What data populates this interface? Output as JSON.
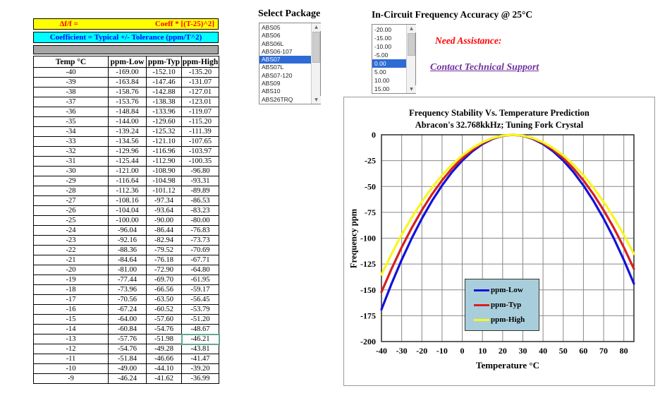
{
  "formula_banner": {
    "line1_left": "Δf/f =",
    "line1_right": "Coeff * [(T-25)^2]",
    "line2": "Coefficient =  Typical +/-  Tolerance (ppm/T^2)",
    "colors": {
      "line1_bg": "#ffff00",
      "line1_text": "#ff0000",
      "line2_bg": "#00ffff",
      "line2_text": "#0000ff",
      "spacer_bg": "#a6a6a6"
    }
  },
  "table": {
    "headers": [
      "Temp °C",
      "ppm-Low",
      "ppm-Typ",
      "ppm-High"
    ],
    "selected_cell": {
      "row_index": 27,
      "col_index": 3
    },
    "rows": [
      [
        "-40",
        "-169.00",
        "-152.10",
        "-135.20"
      ],
      [
        "-39",
        "-163.84",
        "-147.46",
        "-131.07"
      ],
      [
        "-38",
        "-158.76",
        "-142.88",
        "-127.01"
      ],
      [
        "-37",
        "-153.76",
        "-138.38",
        "-123.01"
      ],
      [
        "-36",
        "-148.84",
        "-133.96",
        "-119.07"
      ],
      [
        "-35",
        "-144.00",
        "-129.60",
        "-115.20"
      ],
      [
        "-34",
        "-139.24",
        "-125.32",
        "-111.39"
      ],
      [
        "-33",
        "-134.56",
        "-121.10",
        "-107.65"
      ],
      [
        "-32",
        "-129.96",
        "-116.96",
        "-103.97"
      ],
      [
        "-31",
        "-125.44",
        "-112.90",
        "-100.35"
      ],
      [
        "-30",
        "-121.00",
        "-108.90",
        "-96.80"
      ],
      [
        "-29",
        "-116.64",
        "-104.98",
        "-93.31"
      ],
      [
        "-28",
        "-112.36",
        "-101.12",
        "-89.89"
      ],
      [
        "-27",
        "-108.16",
        "-97.34",
        "-86.53"
      ],
      [
        "-26",
        "-104.04",
        "-93.64",
        "-83.23"
      ],
      [
        "-25",
        "-100.00",
        "-90.00",
        "-80.00"
      ],
      [
        "-24",
        "-96.04",
        "-86.44",
        "-76.83"
      ],
      [
        "-23",
        "-92.16",
        "-82.94",
        "-73.73"
      ],
      [
        "-22",
        "-88.36",
        "-79.52",
        "-70.69"
      ],
      [
        "-21",
        "-84.64",
        "-76.18",
        "-67.71"
      ],
      [
        "-20",
        "-81.00",
        "-72.90",
        "-64.80"
      ],
      [
        "-19",
        "-77.44",
        "-69.70",
        "-61.95"
      ],
      [
        "-18",
        "-73.96",
        "-66.56",
        "-59.17"
      ],
      [
        "-17",
        "-70.56",
        "-63.50",
        "-56.45"
      ],
      [
        "-16",
        "-67.24",
        "-60.52",
        "-53.79"
      ],
      [
        "-15",
        "-64.00",
        "-57.60",
        "-51.20"
      ],
      [
        "-14",
        "-60.84",
        "-54.76",
        "-48.67"
      ],
      [
        "-13",
        "-57.76",
        "-51.98",
        "-46.21"
      ],
      [
        "-12",
        "-54.76",
        "-49.28",
        "-43.81"
      ],
      [
        "-11",
        "-51.84",
        "-46.66",
        "-41.47"
      ],
      [
        "-10",
        "-49.00",
        "-44.10",
        "-39.20"
      ],
      [
        "-9",
        "-46.24",
        "-41.62",
        "-36.99"
      ]
    ]
  },
  "package_list": {
    "title": "Select Package",
    "items": [
      "ABS05",
      "ABS06",
      "ABS06L",
      "ABS06-107",
      "ABS07",
      "ABS07L",
      "ABS07-120",
      "ABS09",
      "ABS10",
      "ABS26TRQ"
    ],
    "selected": "ABS07",
    "selection_bg": "#2e6bd5"
  },
  "accuracy_list": {
    "title": "In-Circuit Frequency Accuracy @ 25°C",
    "items": [
      "-20.00",
      "-15.00",
      "-10.00",
      "-5.00",
      "0.00",
      "5.00",
      "10.00",
      "15.00"
    ],
    "selected": "0.00",
    "selection_bg": "#2e6bd5"
  },
  "assistance": {
    "label": "Need Assistance:",
    "link": "Contact Technical Support",
    "label_color": "#ff0000",
    "link_color": "#7030a0"
  },
  "chart_data": {
    "type": "line",
    "title_line1": "Frequency Stability Vs. Temperature Prediction",
    "title_line2": "Abracon's 32.768kkHz; Tuning Fork Crystal",
    "xlabel": "Temperature °C",
    "ylabel": "Frequency ppm",
    "xlim": [
      -40,
      85
    ],
    "ylim": [
      -200,
      0
    ],
    "x_ticks": [
      -40,
      -30,
      -20,
      -10,
      0,
      10,
      20,
      30,
      40,
      50,
      60,
      70,
      80
    ],
    "y_ticks": [
      0,
      -25,
      -50,
      -75,
      -100,
      -125,
      -150,
      -175,
      -200
    ],
    "grid": true,
    "legend_position": "lower-center",
    "legend_bg": "#a9cedb",
    "x": [
      -40,
      -35,
      -30,
      -25,
      -20,
      -15,
      -10,
      -5,
      0,
      5,
      10,
      15,
      20,
      25,
      30,
      35,
      40,
      45,
      50,
      55,
      60,
      65,
      70,
      75,
      80,
      85
    ],
    "series": [
      {
        "name": "ppm-Low",
        "color": "#1212d8",
        "values": [
          -169,
          -144,
          -121,
          -100,
          -81,
          -64,
          -49,
          -36,
          -25,
          -16,
          -9,
          -4,
          -1,
          0,
          -1,
          -4,
          -9,
          -16,
          -25,
          -36,
          -49,
          -64,
          -81,
          -100,
          -121,
          -144
        ]
      },
      {
        "name": "ppm-Typ",
        "color": "#d62020",
        "values": [
          -152.1,
          -129.6,
          -108.9,
          -90,
          -72.9,
          -57.6,
          -44.1,
          -32.4,
          -22.5,
          -14.4,
          -8.1,
          -3.6,
          -0.9,
          0,
          -0.9,
          -3.6,
          -8.1,
          -14.4,
          -22.5,
          -32.4,
          -44.1,
          -57.6,
          -72.9,
          -90,
          -108.9,
          -129.6
        ]
      },
      {
        "name": "ppm-High",
        "color": "#f7f71f",
        "values": [
          -135.2,
          -115.2,
          -96.8,
          -80,
          -64.8,
          -51.2,
          -39.2,
          -28.8,
          -20,
          -12.8,
          -7.2,
          -3.2,
          -0.8,
          0,
          -0.8,
          -3.2,
          -7.2,
          -12.8,
          -20,
          -28.8,
          -39.2,
          -51.2,
          -64.8,
          -80,
          -96.8,
          -115.2
        ]
      }
    ]
  }
}
